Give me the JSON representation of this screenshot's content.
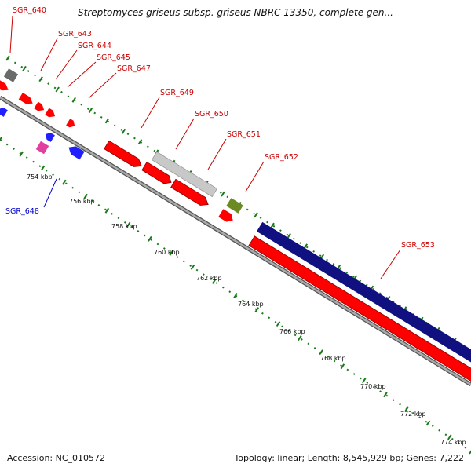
{
  "title": "Streptomyces griseus subsp. griseus NBRC 13350, complete gen...",
  "accession": "Accession: NC_010572",
  "stats": "Topology: linear; Length: 8,545,929 bp; Genes: 7,222",
  "colors": {
    "forward_gene": "#ff0000",
    "reverse_gene": "#2020ff",
    "label_forward": "#cc0000",
    "label_reverse": "#0000cc",
    "backbone": "#8a8a8a",
    "ruler_tick": "#1a7a1a",
    "feature_silver": "#c8c8c8",
    "feature_navy": "#101080",
    "feature_olive": "#6b8a22",
    "feature_gray": "#6a6a6a",
    "feature_pink": "#e040a0"
  },
  "ruler_labels": [
    "754 kbp",
    "756 kbp",
    "758 kbp",
    "760 kbp",
    "762 kbp",
    "764 kbp",
    "766 kbp",
    "768 kbp",
    "770 kbp",
    "772 kbp",
    "774 kbp"
  ],
  "gene_labels": [
    {
      "id": "sgr640",
      "text": "SGR_640",
      "strand": "forward"
    },
    {
      "id": "sgr643",
      "text": "SGR_643",
      "strand": "forward"
    },
    {
      "id": "sgr644",
      "text": "SGR_644",
      "strand": "forward"
    },
    {
      "id": "sgr645",
      "text": "SGR_645",
      "strand": "forward"
    },
    {
      "id": "sgr647",
      "text": "SGR_647",
      "strand": "forward"
    },
    {
      "id": "sgr649",
      "text": "SGR_649",
      "strand": "forward"
    },
    {
      "id": "sgr650",
      "text": "SGR_650",
      "strand": "forward"
    },
    {
      "id": "sgr651",
      "text": "SGR_651",
      "strand": "forward"
    },
    {
      "id": "sgr652",
      "text": "SGR_652",
      "strand": "forward"
    },
    {
      "id": "sgr653",
      "text": "SGR_653",
      "strand": "forward"
    },
    {
      "id": "sgr648",
      "text": "SGR_648",
      "strand": "reverse"
    }
  ]
}
